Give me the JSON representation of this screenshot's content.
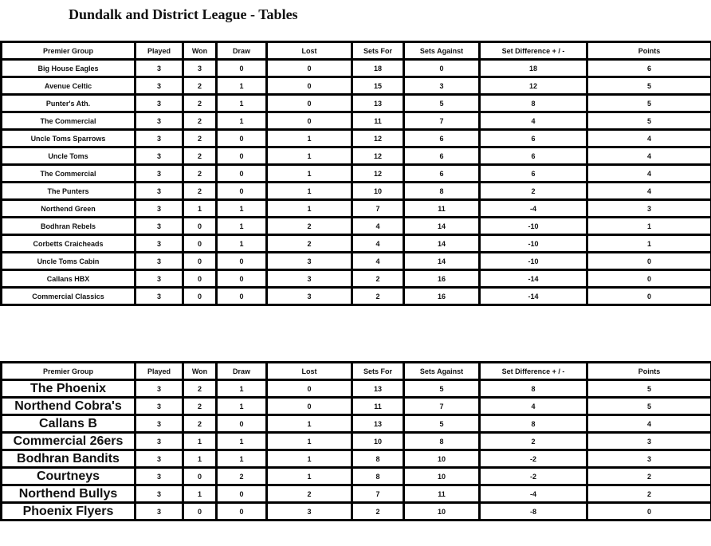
{
  "title": "Dundalk and District League - Tables",
  "headers": [
    "Premier Group",
    "Played",
    "Won",
    "Draw",
    "Lost",
    "Sets For",
    "Sets Against",
    "Set Difference + / -",
    "Points"
  ],
  "table1": [
    [
      "Big House Eagles",
      "3",
      "3",
      "0",
      "0",
      "18",
      "0",
      "18",
      "6"
    ],
    [
      "Avenue Celtic",
      "3",
      "2",
      "1",
      "0",
      "15",
      "3",
      "12",
      "5"
    ],
    [
      "Punter's Ath.",
      "3",
      "2",
      "1",
      "0",
      "13",
      "5",
      "8",
      "5"
    ],
    [
      "The Commercial",
      "3",
      "2",
      "1",
      "0",
      "11",
      "7",
      "4",
      "5"
    ],
    [
      "Uncle Toms Sparrows",
      "3",
      "2",
      "0",
      "1",
      "12",
      "6",
      "6",
      "4"
    ],
    [
      "Uncle Toms",
      "3",
      "2",
      "0",
      "1",
      "12",
      "6",
      "6",
      "4"
    ],
    [
      "The Commercial",
      "3",
      "2",
      "0",
      "1",
      "12",
      "6",
      "6",
      "4"
    ],
    [
      "The Punters",
      "3",
      "2",
      "0",
      "1",
      "10",
      "8",
      "2",
      "4"
    ],
    [
      "Northend Green",
      "3",
      "1",
      "1",
      "1",
      "7",
      "11",
      "-4",
      "3"
    ],
    [
      "Bodhran Rebels",
      "3",
      "0",
      "1",
      "2",
      "4",
      "14",
      "-10",
      "1"
    ],
    [
      "Corbetts Craicheads",
      "3",
      "0",
      "1",
      "2",
      "4",
      "14",
      "-10",
      "1"
    ],
    [
      "Uncle Toms Cabin",
      "3",
      "0",
      "0",
      "3",
      "4",
      "14",
      "-10",
      "0"
    ],
    [
      "Callans HBX",
      "3",
      "0",
      "0",
      "3",
      "2",
      "16",
      "-14",
      "0"
    ],
    [
      "Commercial Classics",
      "3",
      "0",
      "0",
      "3",
      "2",
      "16",
      "-14",
      "0"
    ]
  ],
  "table2": [
    [
      "The Phoenix",
      "3",
      "2",
      "1",
      "0",
      "13",
      "5",
      "8",
      "5"
    ],
    [
      "Northend Cobra's",
      "3",
      "2",
      "1",
      "0",
      "11",
      "7",
      "4",
      "5"
    ],
    [
      "Callans B",
      "3",
      "2",
      "0",
      "1",
      "13",
      "5",
      "8",
      "4"
    ],
    [
      "Commercial 26ers",
      "3",
      "1",
      "1",
      "1",
      "10",
      "8",
      "2",
      "3"
    ],
    [
      "Bodhran Bandits",
      "3",
      "1",
      "1",
      "1",
      "8",
      "10",
      "-2",
      "3"
    ],
    [
      "Courtneys",
      "3",
      "0",
      "2",
      "1",
      "8",
      "10",
      "-2",
      "2"
    ],
    [
      "Northend Bullys",
      "3",
      "1",
      "0",
      "2",
      "7",
      "11",
      "-4",
      "2"
    ],
    [
      "Phoenix Flyers",
      "3",
      "0",
      "0",
      "3",
      "2",
      "10",
      "-8",
      "0"
    ]
  ]
}
